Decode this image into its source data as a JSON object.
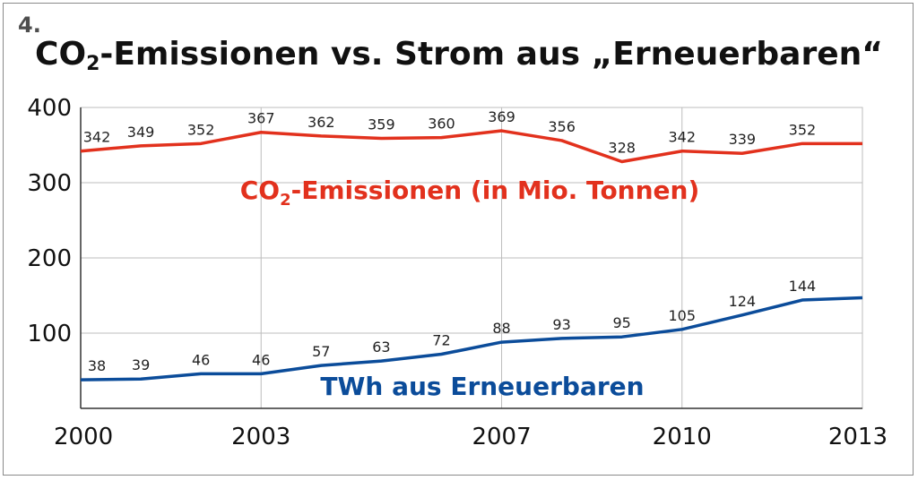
{
  "figure_number": "4.",
  "title": {
    "before": "CO",
    "sub": "2",
    "after": "-Emissionen vs. Strom aus „Erneuerbaren“"
  },
  "colors": {
    "co2": "#e2311d",
    "renewables": "#0b4c9a",
    "grid": "#bdbdbd",
    "axis": "#333333"
  },
  "chart_data": {
    "type": "line",
    "x": [
      2000,
      2001,
      2002,
      2003,
      2004,
      2005,
      2006,
      2007,
      2008,
      2009,
      2010,
      2011,
      2012,
      2013
    ],
    "xlim": [
      2000,
      2013
    ],
    "ylim": [
      0,
      400
    ],
    "x_ticks": [
      "2000",
      "2003",
      "2007",
      "2010",
      "2013"
    ],
    "y_ticks": [
      "100",
      "200",
      "300",
      "400"
    ],
    "grid": true,
    "series": [
      {
        "key": "co2",
        "label": {
          "before": "CO",
          "sub": "2",
          "after": "-Emissionen (in Mio. Tonnen)"
        },
        "values": [
          342,
          349,
          352,
          367,
          362,
          359,
          360,
          369,
          356,
          328,
          342,
          339,
          352,
          352
        ],
        "data_labels": [
          "342",
          "349",
          "352",
          "367",
          "362",
          "359",
          "360",
          "369",
          "356",
          "328",
          "342",
          "339",
          "352"
        ]
      },
      {
        "key": "renewables",
        "label": {
          "before": "TWh aus Erneuerbaren",
          "sub": "",
          "after": ""
        },
        "values": [
          38,
          39,
          46,
          46,
          57,
          63,
          72,
          88,
          93,
          95,
          105,
          124,
          144,
          147
        ],
        "data_labels": [
          "38",
          "39",
          "46",
          "46",
          "57",
          "63",
          "72",
          "88",
          "93",
          "95",
          "105",
          "124",
          "144"
        ]
      }
    ]
  }
}
